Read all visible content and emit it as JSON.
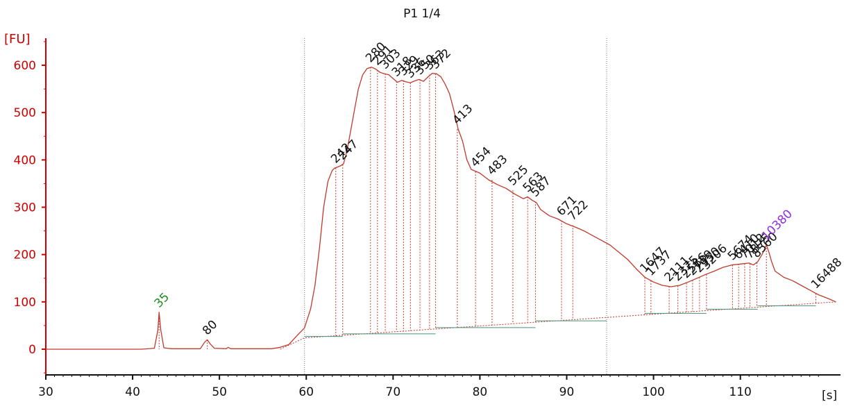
{
  "chart_data": {
    "type": "line",
    "title": "P1 1/4",
    "ylabel": "[FU]",
    "xlabel": "[s]",
    "xlim": [
      30,
      121
    ],
    "ylim": [
      -60,
      670
    ],
    "x_ticks": [
      30,
      40,
      50,
      60,
      70,
      80,
      90,
      100,
      110
    ],
    "y_ticks": [
      0,
      100,
      200,
      300,
      400,
      500,
      600
    ],
    "marker_lines_x": [
      59.8,
      94.6
    ],
    "series": [
      {
        "color": "#c0392b",
        "points": [
          [
            30,
            0
          ],
          [
            41,
            0
          ],
          [
            42.5,
            2
          ],
          [
            42.9,
            40
          ],
          [
            43.05,
            78
          ],
          [
            43.25,
            40
          ],
          [
            43.6,
            3
          ],
          [
            44.5,
            1
          ],
          [
            47.8,
            1
          ],
          [
            48.3,
            15
          ],
          [
            48.6,
            20
          ],
          [
            48.9,
            12
          ],
          [
            49.4,
            2
          ],
          [
            50.8,
            1
          ],
          [
            51.0,
            4
          ],
          [
            51.3,
            1
          ],
          [
            56,
            1
          ],
          [
            57,
            4
          ],
          [
            58,
            10
          ],
          [
            59,
            30
          ],
          [
            59.8,
            45
          ],
          [
            60.5,
            85
          ],
          [
            61,
            135
          ],
          [
            61.5,
            210
          ],
          [
            62,
            300
          ],
          [
            62.5,
            355
          ],
          [
            63,
            378
          ],
          [
            63.3,
            383
          ],
          [
            63.6,
            385
          ],
          [
            64,
            388
          ],
          [
            64.3,
            392
          ],
          [
            64.7,
            420
          ],
          [
            65,
            450
          ],
          [
            65.5,
            500
          ],
          [
            66,
            550
          ],
          [
            66.5,
            580
          ],
          [
            67,
            593
          ],
          [
            67.5,
            596
          ],
          [
            68,
            592
          ],
          [
            68.5,
            585
          ],
          [
            69,
            582
          ],
          [
            69.5,
            580
          ],
          [
            70,
            572
          ],
          [
            70.5,
            564
          ],
          [
            71,
            568
          ],
          [
            71.5,
            565
          ],
          [
            72,
            563
          ],
          [
            72.5,
            567
          ],
          [
            73,
            570
          ],
          [
            73.5,
            566
          ],
          [
            74,
            575
          ],
          [
            74.5,
            583
          ],
          [
            75,
            582
          ],
          [
            75.5,
            576
          ],
          [
            76,
            560
          ],
          [
            76.5,
            540
          ],
          [
            77,
            505
          ],
          [
            77.5,
            465
          ],
          [
            78,
            440
          ],
          [
            78.5,
            400
          ],
          [
            79,
            380
          ],
          [
            80,
            372
          ],
          [
            81,
            358
          ],
          [
            82,
            348
          ],
          [
            83,
            340
          ],
          [
            84,
            328
          ],
          [
            85,
            318
          ],
          [
            85.5,
            322
          ],
          [
            86,
            315
          ],
          [
            86.5,
            310
          ],
          [
            87,
            295
          ],
          [
            88,
            282
          ],
          [
            89,
            275
          ],
          [
            90,
            265
          ],
          [
            91,
            258
          ],
          [
            92,
            250
          ],
          [
            93,
            240
          ],
          [
            94,
            230
          ],
          [
            95,
            220
          ],
          [
            96,
            205
          ],
          [
            97,
            190
          ],
          [
            98,
            170
          ],
          [
            99,
            152
          ],
          [
            100,
            142
          ],
          [
            101,
            135
          ],
          [
            102,
            132
          ],
          [
            103,
            135
          ],
          [
            104,
            142
          ],
          [
            105,
            150
          ],
          [
            106,
            158
          ],
          [
            107,
            165
          ],
          [
            108,
            173
          ],
          [
            109,
            178
          ],
          [
            110,
            180
          ],
          [
            111,
            182
          ],
          [
            111.5,
            178
          ],
          [
            112,
            185
          ],
          [
            112.5,
            200
          ],
          [
            113,
            220
          ],
          [
            113.3,
            205
          ],
          [
            113.6,
            185
          ],
          [
            114,
            165
          ],
          [
            115,
            152
          ],
          [
            116,
            145
          ],
          [
            117,
            135
          ],
          [
            118,
            125
          ],
          [
            119,
            115
          ],
          [
            120,
            108
          ],
          [
            121,
            100
          ]
        ]
      }
    ],
    "baseline": [
      [
        57,
        0
      ],
      [
        59.8,
        24
      ],
      [
        121,
        100
      ]
    ],
    "peaks": [
      {
        "label": "35",
        "x": 43.05,
        "y": 78,
        "color": "#1e8a1e"
      },
      {
        "label": "80",
        "x": 48.6,
        "y": 20,
        "color": "#111111"
      },
      {
        "label": "242",
        "x": 63.4,
        "y": 383,
        "color": "#111111"
      },
      {
        "label": "247",
        "x": 64.2,
        "y": 390,
        "color": "#111111"
      },
      {
        "label": "280",
        "x": 67.4,
        "y": 596,
        "color": "#111111"
      },
      {
        "label": "291",
        "x": 68.2,
        "y": 590,
        "color": "#111111"
      },
      {
        "label": "303",
        "x": 69.1,
        "y": 582,
        "color": "#111111"
      },
      {
        "label": "318",
        "x": 70.4,
        "y": 566,
        "color": "#111111"
      },
      {
        "label": "329",
        "x": 71.2,
        "y": 568,
        "color": "#111111"
      },
      {
        "label": "336",
        "x": 72.0,
        "y": 563,
        "color": "#111111"
      },
      {
        "label": "350",
        "x": 73.1,
        "y": 570,
        "color": "#111111"
      },
      {
        "label": "363",
        "x": 74.2,
        "y": 580,
        "color": "#111111"
      },
      {
        "label": "372",
        "x": 74.9,
        "y": 582,
        "color": "#111111"
      },
      {
        "label": "413",
        "x": 77.4,
        "y": 465,
        "color": "#111111"
      },
      {
        "label": "454",
        "x": 79.5,
        "y": 375,
        "color": "#111111"
      },
      {
        "label": "483",
        "x": 81.4,
        "y": 358,
        "color": "#111111"
      },
      {
        "label": "525",
        "x": 83.8,
        "y": 336,
        "color": "#111111"
      },
      {
        "label": "563",
        "x": 85.5,
        "y": 322,
        "color": "#111111"
      },
      {
        "label": "587",
        "x": 86.4,
        "y": 312,
        "color": "#111111"
      },
      {
        "label": "671",
        "x": 89.4,
        "y": 272,
        "color": "#111111"
      },
      {
        "label": "722",
        "x": 90.7,
        "y": 262,
        "color": "#111111"
      },
      {
        "label": "1647",
        "x": 99.0,
        "y": 152,
        "color": "#111111"
      },
      {
        "label": "1737",
        "x": 99.7,
        "y": 145,
        "color": "#111111"
      },
      {
        "label": "2111",
        "x": 101.8,
        "y": 133,
        "color": "#111111"
      },
      {
        "label": "2375",
        "x": 102.8,
        "y": 134,
        "color": "#111111"
      },
      {
        "label": "2586",
        "x": 103.8,
        "y": 140,
        "color": "#111111"
      },
      {
        "label": "2739",
        "x": 104.5,
        "y": 146,
        "color": "#111111"
      },
      {
        "label": "2950",
        "x": 105.3,
        "y": 152,
        "color": "#111111"
      },
      {
        "label": "3206",
        "x": 106.1,
        "y": 158,
        "color": "#111111"
      },
      {
        "label": "5674",
        "x": 109.1,
        "y": 178,
        "color": "#111111"
      },
      {
        "label": "6410",
        "x": 109.8,
        "y": 180,
        "color": "#111111"
      },
      {
        "label": "7012",
        "x": 110.5,
        "y": 181,
        "color": "#111111"
      },
      {
        "label": "7875",
        "x": 111.1,
        "y": 181,
        "color": "#111111"
      },
      {
        "label": "8560",
        "x": 111.9,
        "y": 183,
        "color": "#111111"
      },
      {
        "label": "10380",
        "x": 113.0,
        "y": 220,
        "color": "#8e2de2"
      },
      {
        "label": "16488",
        "x": 118.7,
        "y": 118,
        "color": "#111111"
      }
    ]
  },
  "colors": {
    "trace": "#c0392b",
    "axis": "#d00000",
    "baseline": "#c0392b",
    "segment": "#4a8f7a",
    "marker": "#777777",
    "lower_marker": "#1e8a1e",
    "upper_marker": "#8e2de2"
  }
}
